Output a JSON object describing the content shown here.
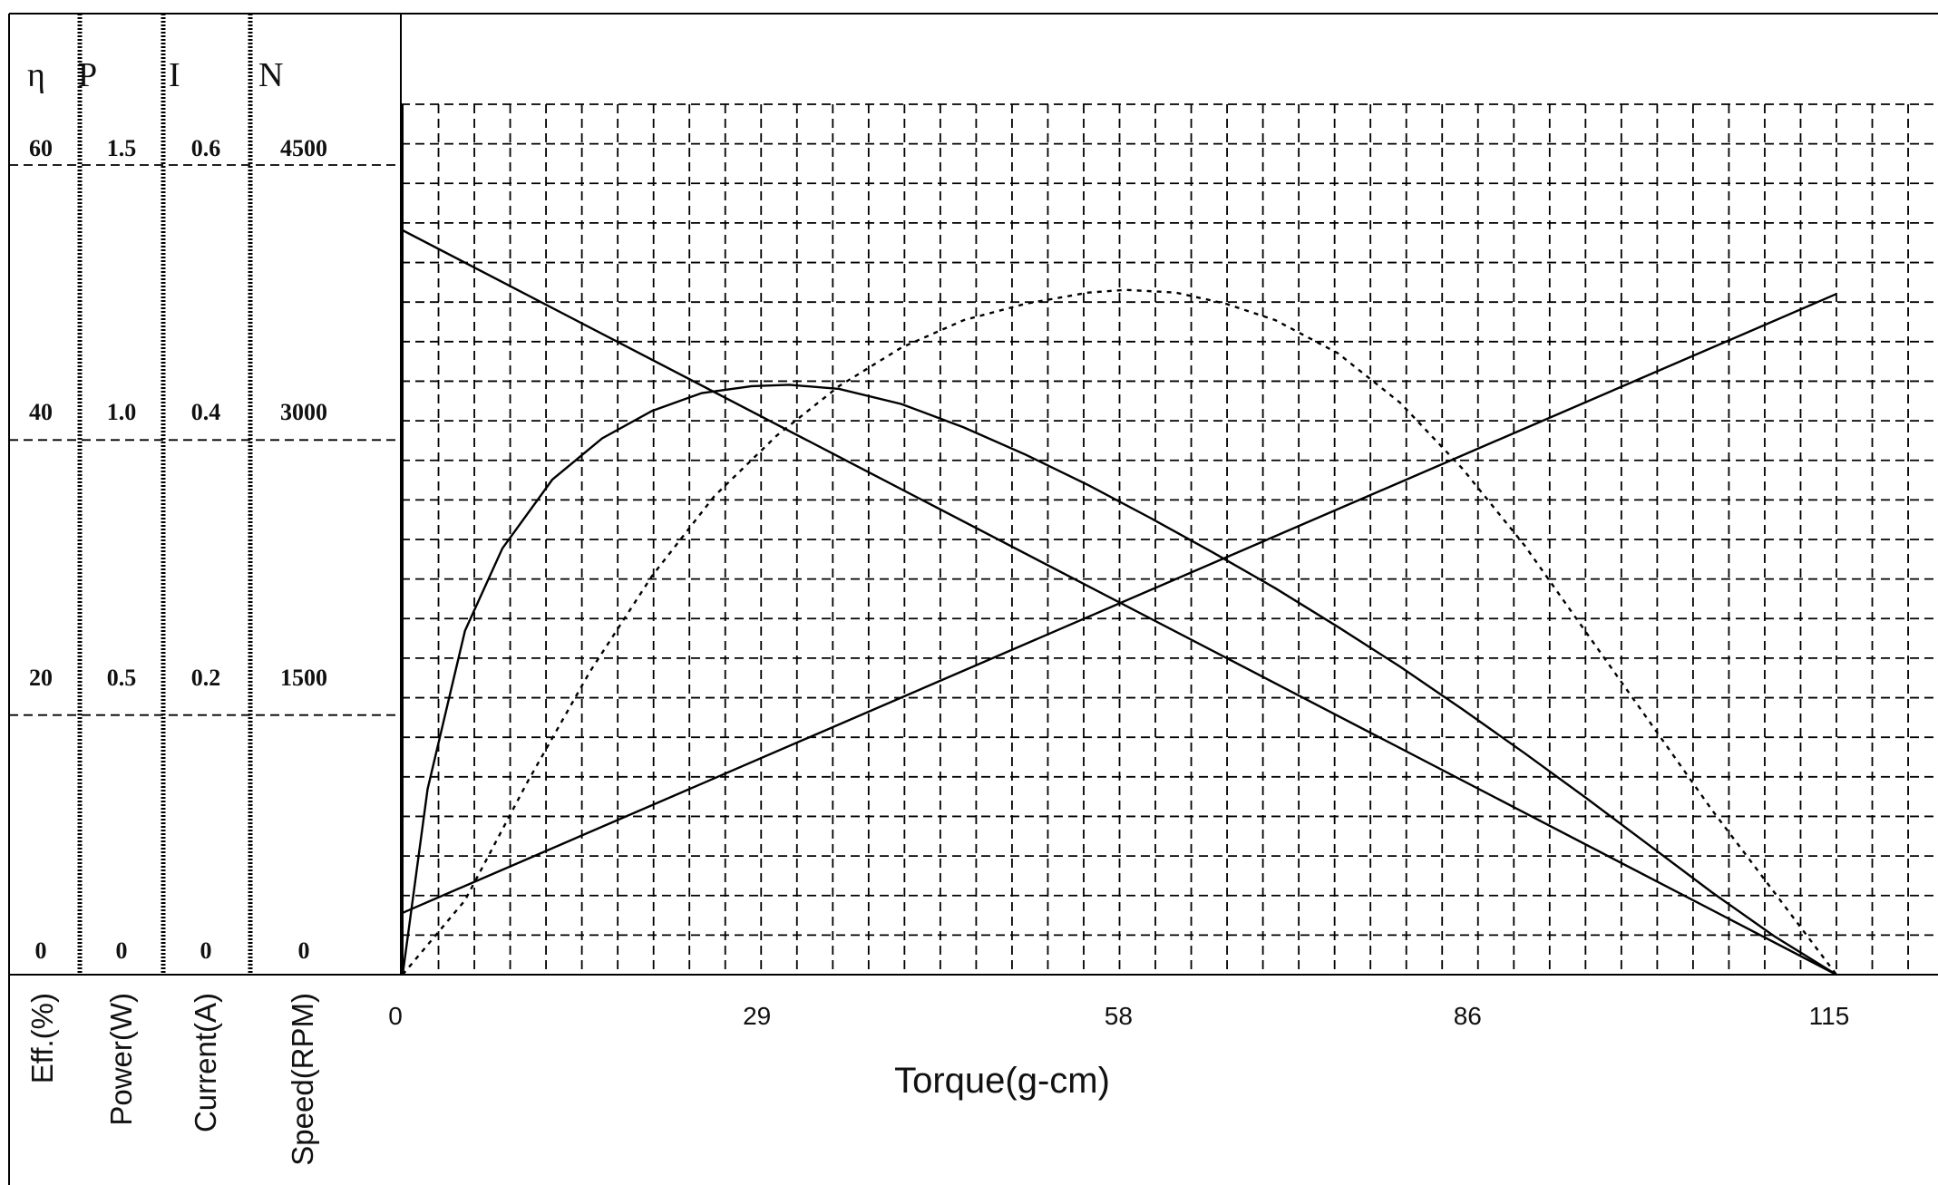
{
  "chart_data": {
    "type": "line",
    "xlabel": "Torque(g-cm)",
    "x_ticks": [
      0,
      29,
      58,
      86,
      115
    ],
    "xlim": [
      0,
      115
    ],
    "grid": true,
    "axes": [
      {
        "symbol": "η",
        "label": "Eff.(%)",
        "ticks": [
          "0",
          "20",
          "40",
          "60"
        ],
        "ylim": [
          0,
          60
        ]
      },
      {
        "symbol": "P",
        "label": "Power(W)",
        "ticks": [
          "0",
          "0.5",
          "1.0",
          "1.5"
        ],
        "ylim": [
          0,
          1.5
        ]
      },
      {
        "symbol": "I",
        "label": "Current(A)",
        "ticks": [
          "0",
          "0.2",
          "0.4",
          "0.6"
        ],
        "ylim": [
          0,
          0.6
        ]
      },
      {
        "symbol": "N",
        "label": "Speed(RPM)",
        "ticks": [
          "0",
          "1500",
          "3000",
          "4500"
        ],
        "ylim": [
          0,
          4500
        ]
      }
    ],
    "series": [
      {
        "axis": 3,
        "style": "solid",
        "x": [
          0,
          115
        ],
        "y": [
          4060,
          0
        ]
      },
      {
        "axis": 2,
        "style": "solid",
        "x": [
          0,
          115
        ],
        "y": [
          0.045,
          0.495
        ]
      },
      {
        "axis": 0,
        "style": "solid",
        "x": [
          0,
          2,
          5,
          8,
          12,
          16,
          20,
          24,
          28,
          31,
          35,
          40,
          45,
          50,
          55,
          60,
          65,
          70,
          75,
          80,
          85,
          90,
          95,
          100,
          105,
          110,
          115
        ],
        "y": [
          0,
          13.5,
          25,
          31,
          36,
          39,
          41,
          42.3,
          42.8,
          42.9,
          42.6,
          41.5,
          39.8,
          37.8,
          35.6,
          33.2,
          30.7,
          28.1,
          25.3,
          22.4,
          19.3,
          16.1,
          12.8,
          9.4,
          6.0,
          2.8,
          0
        ]
      },
      {
        "axis": 1,
        "style": "dotted",
        "x": [
          0,
          5,
          10,
          15,
          20,
          25,
          30,
          35,
          40,
          45,
          50,
          55,
          58,
          62,
          66,
          70,
          75,
          80,
          85,
          90,
          95,
          100,
          105,
          110,
          115
        ],
        "y": [
          0,
          0.135,
          0.35,
          0.55,
          0.725,
          0.87,
          0.98,
          1.07,
          1.14,
          1.19,
          1.22,
          1.24,
          1.245,
          1.24,
          1.22,
          1.19,
          1.13,
          1.04,
          0.92,
          0.78,
          0.62,
          0.46,
          0.3,
          0.15,
          0
        ]
      }
    ]
  }
}
